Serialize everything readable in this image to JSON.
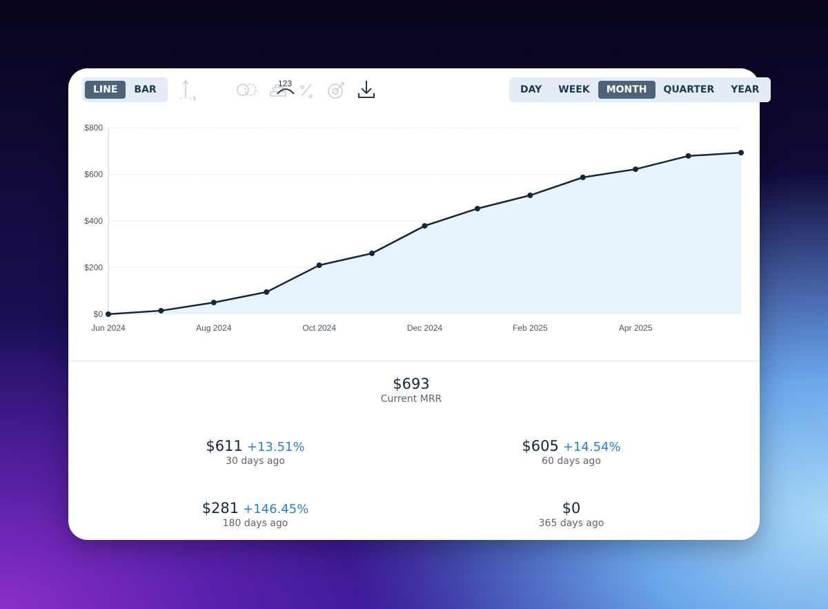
{
  "toolbar": {
    "chart_types": [
      "LINE",
      "BAR"
    ],
    "icon_label": "123",
    "periods": [
      "DAY",
      "WEEK",
      "MONTH",
      "QUARTER",
      "YEAR"
    ]
  },
  "chart_data": {
    "type": "line",
    "categories": [
      "Jun 2024",
      null,
      "Aug 2024",
      null,
      "Oct 2024",
      null,
      "Dec 2024",
      null,
      "Feb 2025",
      null,
      "Apr 2025",
      null,
      null
    ],
    "values": [
      0,
      15,
      50,
      95,
      210,
      261,
      379,
      453,
      510,
      587,
      622,
      679,
      693
    ],
    "color": "#13263d",
    "area_color": "#e9f3fd",
    "ylim": [
      0,
      800
    ],
    "yticks": [
      {
        "value": 0,
        "label": "$0"
      },
      {
        "value": 200,
        "label": "$200"
      },
      {
        "value": 400,
        "label": "$400"
      },
      {
        "value": 600,
        "label": "$600"
      },
      {
        "value": 800,
        "label": "$800"
      }
    ],
    "grid": true
  },
  "summary": {
    "current": {
      "value": "$693",
      "label": "Current MRR"
    },
    "history": [
      {
        "value": "$611",
        "change": "+13.51%",
        "label": "30 days ago"
      },
      {
        "value": "$605",
        "change": "+14.54%",
        "label": "60 days ago"
      },
      {
        "value": "$281",
        "change": "+146.45%",
        "label": "180 days ago"
      },
      {
        "value": "$0",
        "label": "365 days ago"
      }
    ]
  }
}
